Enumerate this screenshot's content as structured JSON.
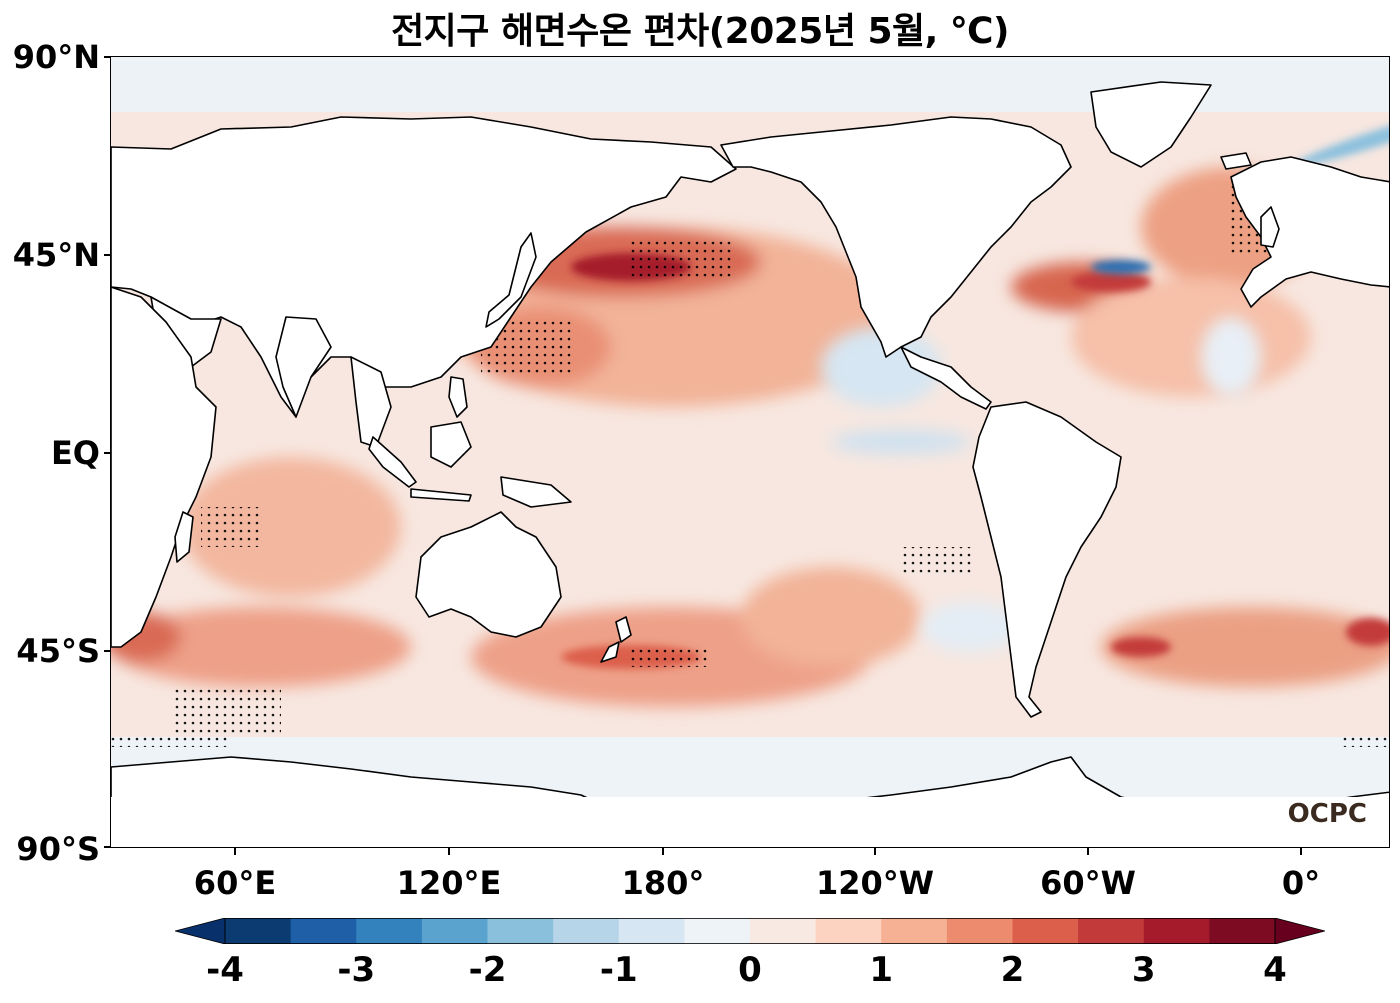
{
  "title": "전지구 해면수온 편차(2025년 5월, ℃)",
  "lat_labels": [
    "90°N",
    "45°N",
    "EQ",
    "45°S",
    "90°S"
  ],
  "lon_labels": [
    "60°E",
    "120°E",
    "180°",
    "120°W",
    "60°W",
    "0°"
  ],
  "colorbar": {
    "ticks": [
      "-4",
      "-3",
      "-2",
      "-1",
      "0",
      "1",
      "2",
      "3",
      "4"
    ],
    "colors": [
      "#0b3b70",
      "#1f5fa8",
      "#3381bd",
      "#5aa3cf",
      "#8bc0dd",
      "#b7d5e8",
      "#d6e6f2",
      "#eef3f8",
      "#f8e9e3",
      "#fbd3c0",
      "#f6b093",
      "#ec8b6e",
      "#dc5f4c",
      "#c33a3a",
      "#a51b2c",
      "#7d0b22"
    ],
    "min_color": "#08306b",
    "max_color": "#67001f"
  },
  "logo": "OCPC",
  "map": {
    "ocean_color": "#f5ebe7",
    "land_color": "#ffffff",
    "ice_color": "#edf2f7"
  }
}
